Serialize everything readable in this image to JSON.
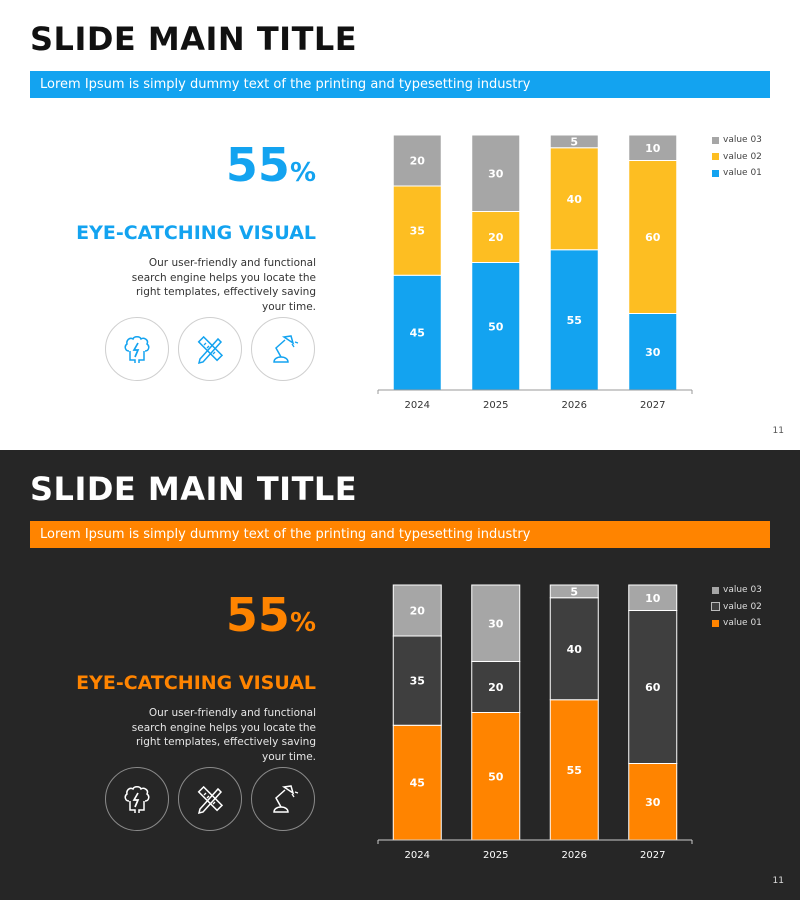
{
  "slides": [
    {
      "theme": "light",
      "title": "SLIDE MAIN TITLE",
      "banner": "Lorem Ipsum is simply dummy text of the printing and typesetting industry",
      "percent_value": "55",
      "percent_sign": "%",
      "heading": "EYE-CATCHING VISUAL",
      "description": "Our user-friendly and functional search engine helps you locate the right templates, effectively saving your time.",
      "page_number": "11",
      "icons": [
        "brain-lightning-icon",
        "pencil-ruler-icon",
        "desk-lamp-icon"
      ],
      "colors": {
        "accent": "#13A3F0",
        "value_01": "#13A3F0",
        "value_02": "#FDBE22",
        "value_03": "#A6A6A6",
        "label": "#ffffff",
        "axis": "#999999",
        "tick": "#333333",
        "icon": "#13A3F0"
      }
    },
    {
      "theme": "dark",
      "title": "SLIDE MAIN TITLE",
      "banner": "Lorem Ipsum is simply dummy text of the printing and typesetting industry",
      "percent_value": "55",
      "percent_sign": "%",
      "heading": "EYE-CATCHING VISUAL",
      "description": "Our user-friendly and functional search engine helps you locate the right templates, effectively saving your time.",
      "page_number": "11",
      "icons": [
        "brain-lightning-icon",
        "pencil-ruler-icon",
        "desk-lamp-icon"
      ],
      "colors": {
        "accent": "#FF8400",
        "value_01": "#FF8400",
        "value_02": "#3F3F3F",
        "value_03": "#A6A6A6",
        "label": "#ffffff",
        "axis": "#cccccc",
        "tick": "#ffffff",
        "icon": "#ffffff"
      }
    }
  ],
  "chart_data": [
    {
      "type": "bar",
      "stacked": true,
      "title": "",
      "xlabel": "",
      "ylabel": "",
      "ylim": [
        0,
        100
      ],
      "categories": [
        "2024",
        "2025",
        "2026",
        "2027"
      ],
      "series": [
        {
          "name": "value 01",
          "values": [
            45,
            50,
            55,
            30
          ]
        },
        {
          "name": "value 02",
          "values": [
            35,
            20,
            40,
            60
          ]
        },
        {
          "name": "value 03",
          "values": [
            20,
            30,
            5,
            10
          ]
        }
      ],
      "legend": [
        "value 03",
        "value 02",
        "value 01"
      ],
      "legend_position": "right"
    },
    {
      "type": "bar",
      "stacked": true,
      "title": "",
      "xlabel": "",
      "ylabel": "",
      "ylim": [
        0,
        100
      ],
      "categories": [
        "2024",
        "2025",
        "2026",
        "2027"
      ],
      "series": [
        {
          "name": "value 01",
          "values": [
            45,
            50,
            55,
            30
          ]
        },
        {
          "name": "value 02",
          "values": [
            35,
            20,
            40,
            60
          ]
        },
        {
          "name": "value 03",
          "values": [
            20,
            30,
            5,
            10
          ]
        }
      ],
      "legend": [
        "value 03",
        "value 02",
        "value 01"
      ],
      "legend_position": "right"
    }
  ]
}
